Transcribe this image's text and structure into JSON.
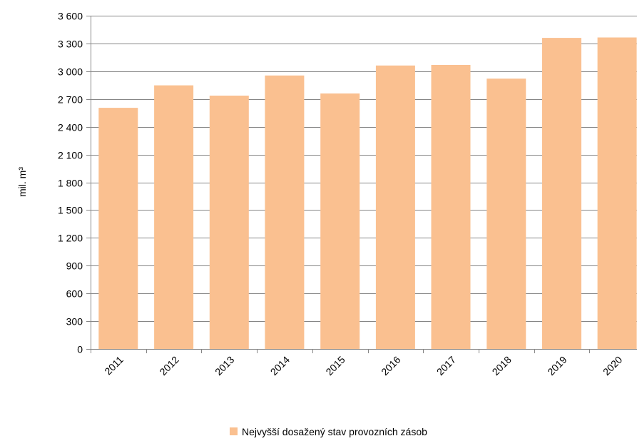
{
  "chart_data": {
    "type": "bar",
    "categories": [
      "2011",
      "2012",
      "2013",
      "2014",
      "2015",
      "2016",
      "2017",
      "2018",
      "2019",
      "2020"
    ],
    "series": [
      {
        "name": "Nejvyšší dosažený stav provozních zásob",
        "values": [
          2605,
          2848,
          2737,
          2954,
          2760,
          3062,
          3068,
          2920,
          3360,
          3365
        ],
        "color": "#FAC090"
      }
    ],
    "ylabel": "mil. m³",
    "xlabel": "",
    "ylim": [
      0,
      3600
    ],
    "yticks": [
      0,
      300,
      600,
      900,
      1200,
      1500,
      1800,
      2100,
      2400,
      2700,
      3000,
      3300,
      3600
    ],
    "ytick_labels": [
      "0",
      "300",
      "600",
      "900",
      "1 200",
      "1 500",
      "1 800",
      "2 100",
      "2 400",
      "2 700",
      "3 000",
      "3 300",
      "3 600"
    ],
    "grid": true,
    "gridline_color": "#868686",
    "axis_color": "#868686",
    "legend_position": "bottom"
  }
}
